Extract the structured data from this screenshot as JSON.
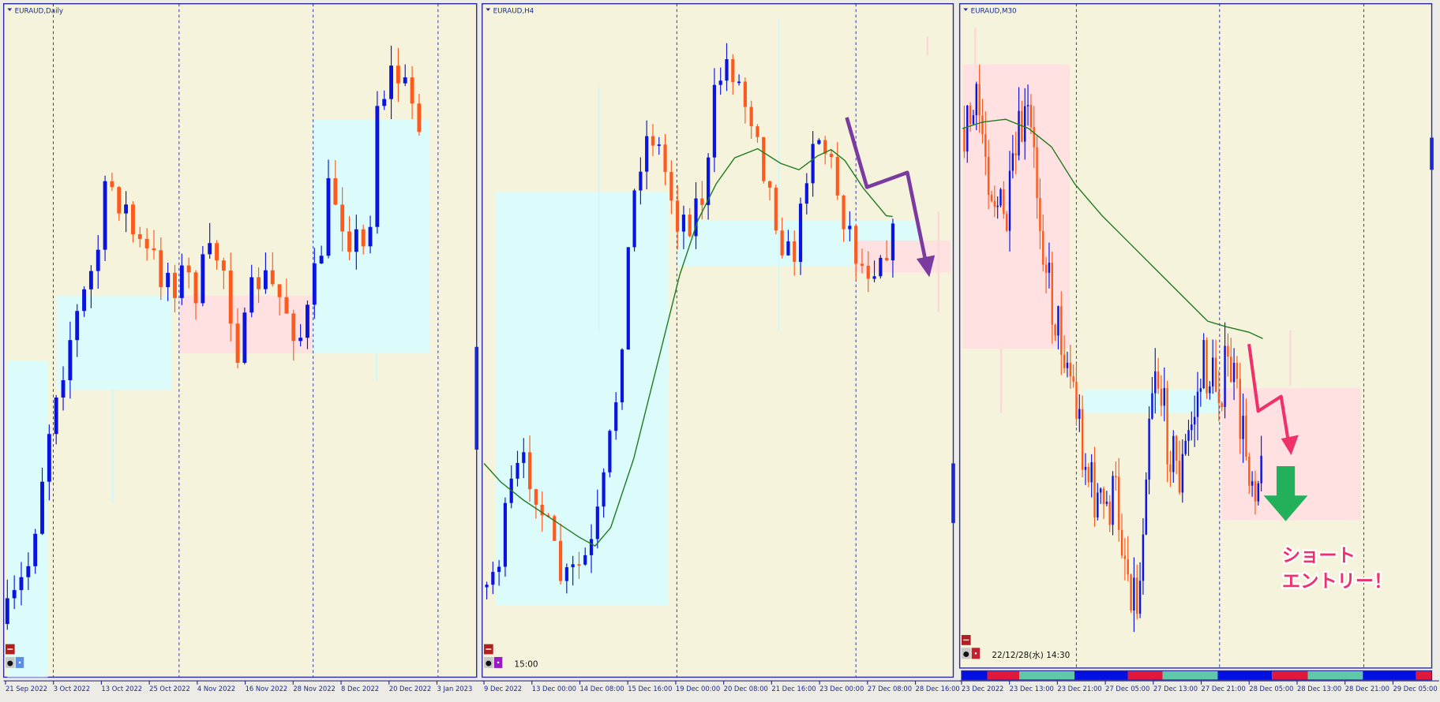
{
  "colors": {
    "background": "#f5f3dc",
    "frame": "#2a2a9a",
    "bull_candle": "#0a14e0",
    "bear_candle": "#ff5a1e",
    "demand_zone": "#dcfbfb",
    "supply_zone": "#ffe1e1",
    "moving_average": "#1e7a1e",
    "h4_arrow": "#7b3aa0",
    "m30_arrow": "#f0306a",
    "entry_arrow": "#22b05a"
  },
  "panels": [
    {
      "title": "EURAUD,Daily",
      "time_labels": [
        "21 Sep 2022",
        "3 Oct 2022",
        "13 Oct 2022",
        "25 Oct 2022",
        "4 Nov 2022",
        "16 Nov 2022",
        "28 Nov 2022",
        "8 Dec 2022",
        "20 Dec 2022",
        "3 Jan 2023"
      ]
    },
    {
      "title": "EURAUD,H4",
      "info": "15:00",
      "time_labels": [
        "9 Dec 2022",
        "13 Dec 00:00",
        "14 Dec 08:00",
        "15 Dec 16:00",
        "19 Dec 00:00",
        "20 Dec 08:00",
        "21 Dec 16:00",
        "23 Dec 00:00",
        "27 Dec 08:00",
        "28 Dec 16:00"
      ]
    },
    {
      "title": "EURAUD,M30",
      "info": "22/12/28(水) 14:30",
      "annotation_line1": "ショート",
      "annotation_line2": "エントリー！",
      "time_labels": [
        "23 Dec 2022",
        "23 Dec 13:00",
        "23 Dec 21:00",
        "27 Dec 05:00",
        "27 Dec 13:00",
        "27 Dec 21:00",
        "28 Dec 05:00",
        "28 Dec 13:00",
        "28 Dec 21:00",
        "29 Dec 05:00"
      ]
    }
  ],
  "icons": {
    "close_button": "minus-icon",
    "trade_icon": "bomb-icon",
    "indicator_toggle": "square-icon"
  }
}
